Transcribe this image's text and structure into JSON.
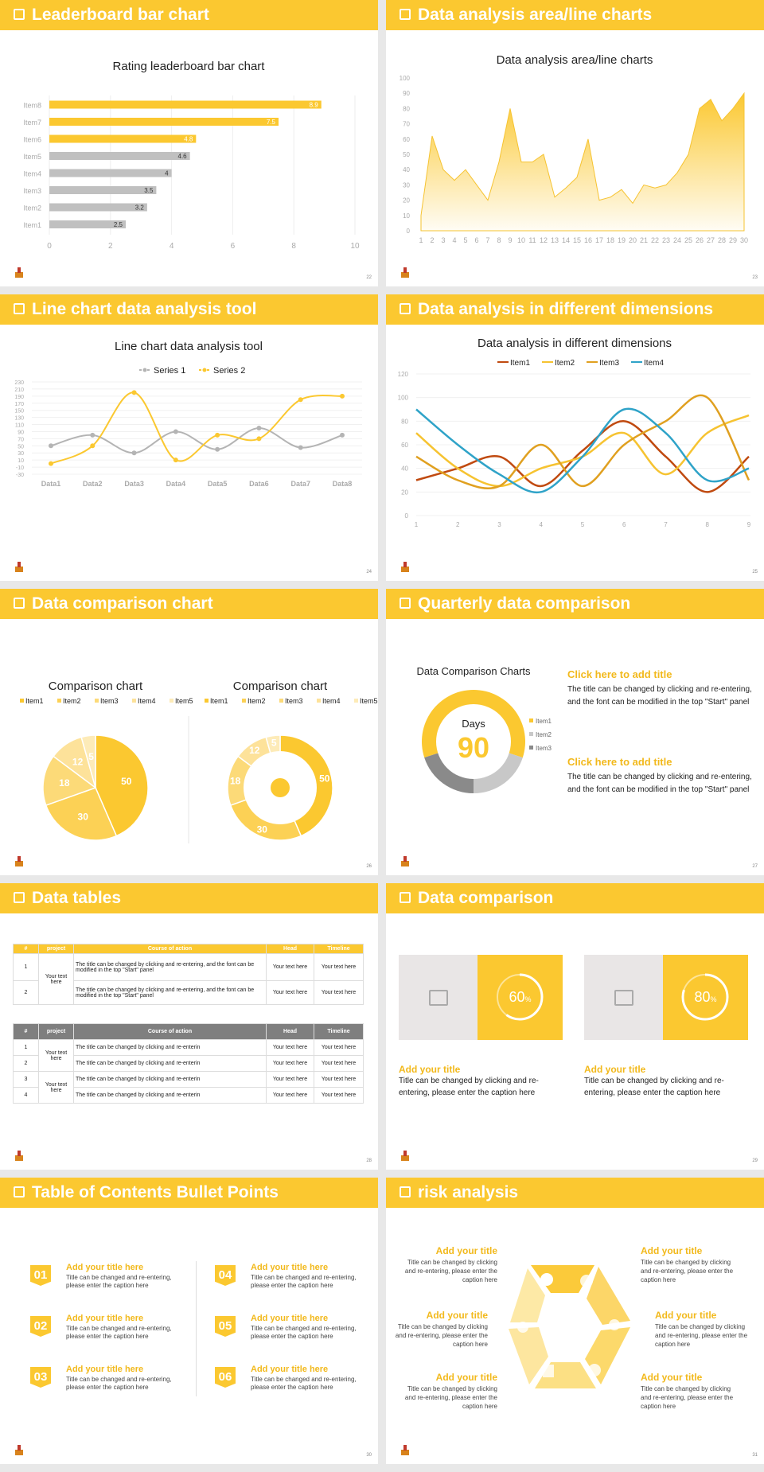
{
  "colors": {
    "accent": "#fbc830",
    "grey": "#9e9e9e"
  },
  "s1": {
    "header": "Leaderboard bar chart",
    "page": "22"
  },
  "s2": {
    "header": "Data analysis area/line charts",
    "page": "23"
  },
  "s3": {
    "header": "Line chart data analysis tool",
    "page": "24"
  },
  "s4": {
    "header": "Data analysis in different dimensions",
    "page": "25"
  },
  "s5": {
    "header": "Data comparison chart",
    "page": "26"
  },
  "s6": {
    "header": "Quarterly data comparison",
    "page": "27",
    "chart_title": "Data Comparison Charts",
    "days_label": "Days",
    "days_value": "90",
    "legend": [
      "Item1",
      "Item2",
      "Item3"
    ],
    "blocks": [
      {
        "title": "Click here to add title",
        "text": "The title can be changed by clicking and re-entering, and the font can be modified in the top \"Start\" panel"
      },
      {
        "title": "Click here to add title",
        "text": "The title can be changed by clicking and re-entering, and the font can be modified in the top \"Start\" panel"
      }
    ]
  },
  "s7": {
    "header": "Data tables",
    "page": "28",
    "t1": {
      "cols": [
        "#",
        "project",
        "Course of action",
        "Head",
        "Timeline"
      ],
      "group": "Your text here",
      "rows": [
        {
          "n": "1",
          "c": "The title can be changed by clicking and re-entering, and the font can be modified in the top \"Start\" panel",
          "h": "Your text here",
          "t": "Your text here"
        },
        {
          "n": "2",
          "c": "The title can be changed by clicking and re-entering, and the font can be modified in the top \"Start\" panel",
          "h": "Your text here",
          "t": "Your text here"
        }
      ]
    },
    "t2": {
      "cols": [
        "#",
        "project",
        "Course of action",
        "Head",
        "Timeline"
      ],
      "group1": "Your text here",
      "group2": "Your text here",
      "rows": [
        {
          "n": "1",
          "c": "The title can be changed by clicking and re-enterin",
          "h": "Your text here",
          "t": "Your text here"
        },
        {
          "n": "2",
          "c": "The title can be changed by clicking and re-enterin",
          "h": "Your text here",
          "t": "Your text here"
        },
        {
          "n": "3",
          "c": "The title can be changed by clicking and re-enterin",
          "h": "Your text here",
          "t": "Your text here"
        },
        {
          "n": "4",
          "c": "The title can be changed by clicking and re-enterin",
          "h": "Your text here",
          "t": "Your text here"
        }
      ]
    }
  },
  "s8": {
    "header": "Data comparison",
    "page": "29",
    "cards": [
      {
        "pct": "60",
        "pct_value": 0.6,
        "title": "Add your title",
        "text": "Title can be changed by clicking and re-entering, please enter the caption here"
      },
      {
        "pct": "80",
        "pct_value": 0.8,
        "title": "Add your title",
        "text": "Title can be changed by clicking and re-entering, please enter the caption here"
      }
    ]
  },
  "s9": {
    "header": "Table of Contents Bullet Points",
    "page": "30",
    "items": [
      {
        "n": "01",
        "title": "Add your title here",
        "text": "Title can be changed and re-entering, please enter the caption here"
      },
      {
        "n": "02",
        "title": "Add your title here",
        "text": "Title can be changed and re-entering, please enter the caption here"
      },
      {
        "n": "03",
        "title": "Add your title here",
        "text": "Title can be changed and re-entering, please enter the caption here"
      },
      {
        "n": "04",
        "title": "Add your title here",
        "text": "Title can be changed and re-entering, please enter the caption here"
      },
      {
        "n": "05",
        "title": "Add your title here",
        "text": "Title can be changed and re-entering, please enter the caption here"
      },
      {
        "n": "06",
        "title": "Add your title here",
        "text": "Title can be changed and re-entering, please enter the caption here"
      }
    ]
  },
  "s10": {
    "header": "risk analysis",
    "page": "31",
    "items": [
      {
        "title": "Add your title",
        "text": "Title can be changed by clicking and re-entering, please enter the caption here"
      },
      {
        "title": "Add your title",
        "text": "Title can be changed by clicking and re-entering, please enter the caption here"
      },
      {
        "title": "Add your title",
        "text": "Title can be changed by clicking and re-entering, please enter the caption here"
      },
      {
        "title": "Add your title",
        "text": "Title can be changed by clicking and re-entering, please enter the caption here"
      },
      {
        "title": "Add your title",
        "text": "Title can be changed by clicking and re-entering, please enter the caption here"
      },
      {
        "title": "Add your title",
        "text": "Title can be changed by clicking and re-entering, please enter the caption here"
      }
    ]
  },
  "chart_data": [
    {
      "type": "bar",
      "title": "Rating leaderboard bar chart",
      "categories": [
        "Item1",
        "Item2",
        "Item3",
        "Item4",
        "Item5",
        "Item6",
        "Item7",
        "Item8"
      ],
      "values": [
        2.5,
        3.2,
        3.5,
        4,
        4.6,
        4.8,
        7.5,
        8.9
      ],
      "highlight": [
        false,
        false,
        false,
        false,
        false,
        true,
        true,
        true
      ],
      "xlim": [
        0,
        10
      ],
      "xticks": [
        0,
        2,
        4,
        6,
        8,
        10
      ]
    },
    {
      "type": "area",
      "title": "Data analysis area/line charts",
      "x": [
        1,
        2,
        3,
        4,
        5,
        6,
        7,
        8,
        9,
        10,
        11,
        12,
        13,
        14,
        15,
        16,
        17,
        18,
        19,
        20,
        21,
        22,
        23,
        24,
        25,
        26,
        27,
        28,
        29,
        30
      ],
      "values": [
        10,
        62,
        40,
        33,
        40,
        30,
        20,
        45,
        80,
        45,
        45,
        50,
        22,
        28,
        35,
        60,
        20,
        22,
        27,
        18,
        30,
        28,
        30,
        38,
        50,
        80,
        86,
        72,
        80,
        90
      ],
      "ylim": [
        0,
        100
      ],
      "yticks": [
        0,
        10,
        20,
        30,
        40,
        50,
        60,
        70,
        80,
        90,
        100
      ]
    },
    {
      "type": "line",
      "title": "Line chart data analysis tool",
      "categories": [
        "Data1",
        "Data2",
        "Data3",
        "Data4",
        "Data5",
        "Data6",
        "Data7",
        "Data8"
      ],
      "series": [
        {
          "name": "Series 1",
          "values": [
            50,
            80,
            30,
            90,
            40,
            100,
            45,
            80
          ]
        },
        {
          "name": "Series 2",
          "values": [
            0,
            50,
            200,
            10,
            80,
            70,
            180,
            190
          ]
        }
      ],
      "ylim": [
        -30,
        230
      ],
      "yticks": [
        -30,
        -10,
        10,
        30,
        50,
        70,
        90,
        110,
        130,
        150,
        170,
        190,
        210,
        230
      ]
    },
    {
      "type": "line",
      "title": "Data analysis in different dimensions",
      "x": [
        1,
        2,
        3,
        4,
        5,
        6,
        7,
        8,
        9
      ],
      "series": [
        {
          "name": "Item1",
          "values": [
            30,
            40,
            50,
            25,
            55,
            80,
            50,
            20,
            50
          ]
        },
        {
          "name": "Item2",
          "values": [
            70,
            40,
            25,
            40,
            50,
            70,
            35,
            70,
            85
          ]
        },
        {
          "name": "Item3",
          "values": [
            50,
            30,
            25,
            60,
            25,
            60,
            80,
            100,
            30
          ]
        },
        {
          "name": "Item4",
          "values": [
            90,
            60,
            35,
            20,
            50,
            90,
            70,
            30,
            40
          ]
        }
      ],
      "ylim": [
        0,
        120
      ],
      "yticks": [
        0,
        20,
        40,
        60,
        80,
        100,
        120
      ]
    },
    {
      "type": "pie",
      "title": "Comparison chart",
      "labels": [
        "Item1",
        "Item2",
        "Item3",
        "Item4",
        "Item5"
      ],
      "values": [
        50,
        30,
        18,
        12,
        5
      ]
    },
    {
      "type": "pie",
      "title": "Comparison chart",
      "donut": true,
      "labels": [
        "Item1",
        "Item2",
        "Item3",
        "Item4",
        "Item5"
      ],
      "values": [
        50,
        30,
        18,
        12,
        5
      ]
    },
    {
      "type": "pie",
      "title": "Data Comparison Charts",
      "donut": true,
      "labels": [
        "Item1",
        "Item2",
        "Item3"
      ],
      "values": [
        60,
        20,
        20
      ]
    }
  ]
}
